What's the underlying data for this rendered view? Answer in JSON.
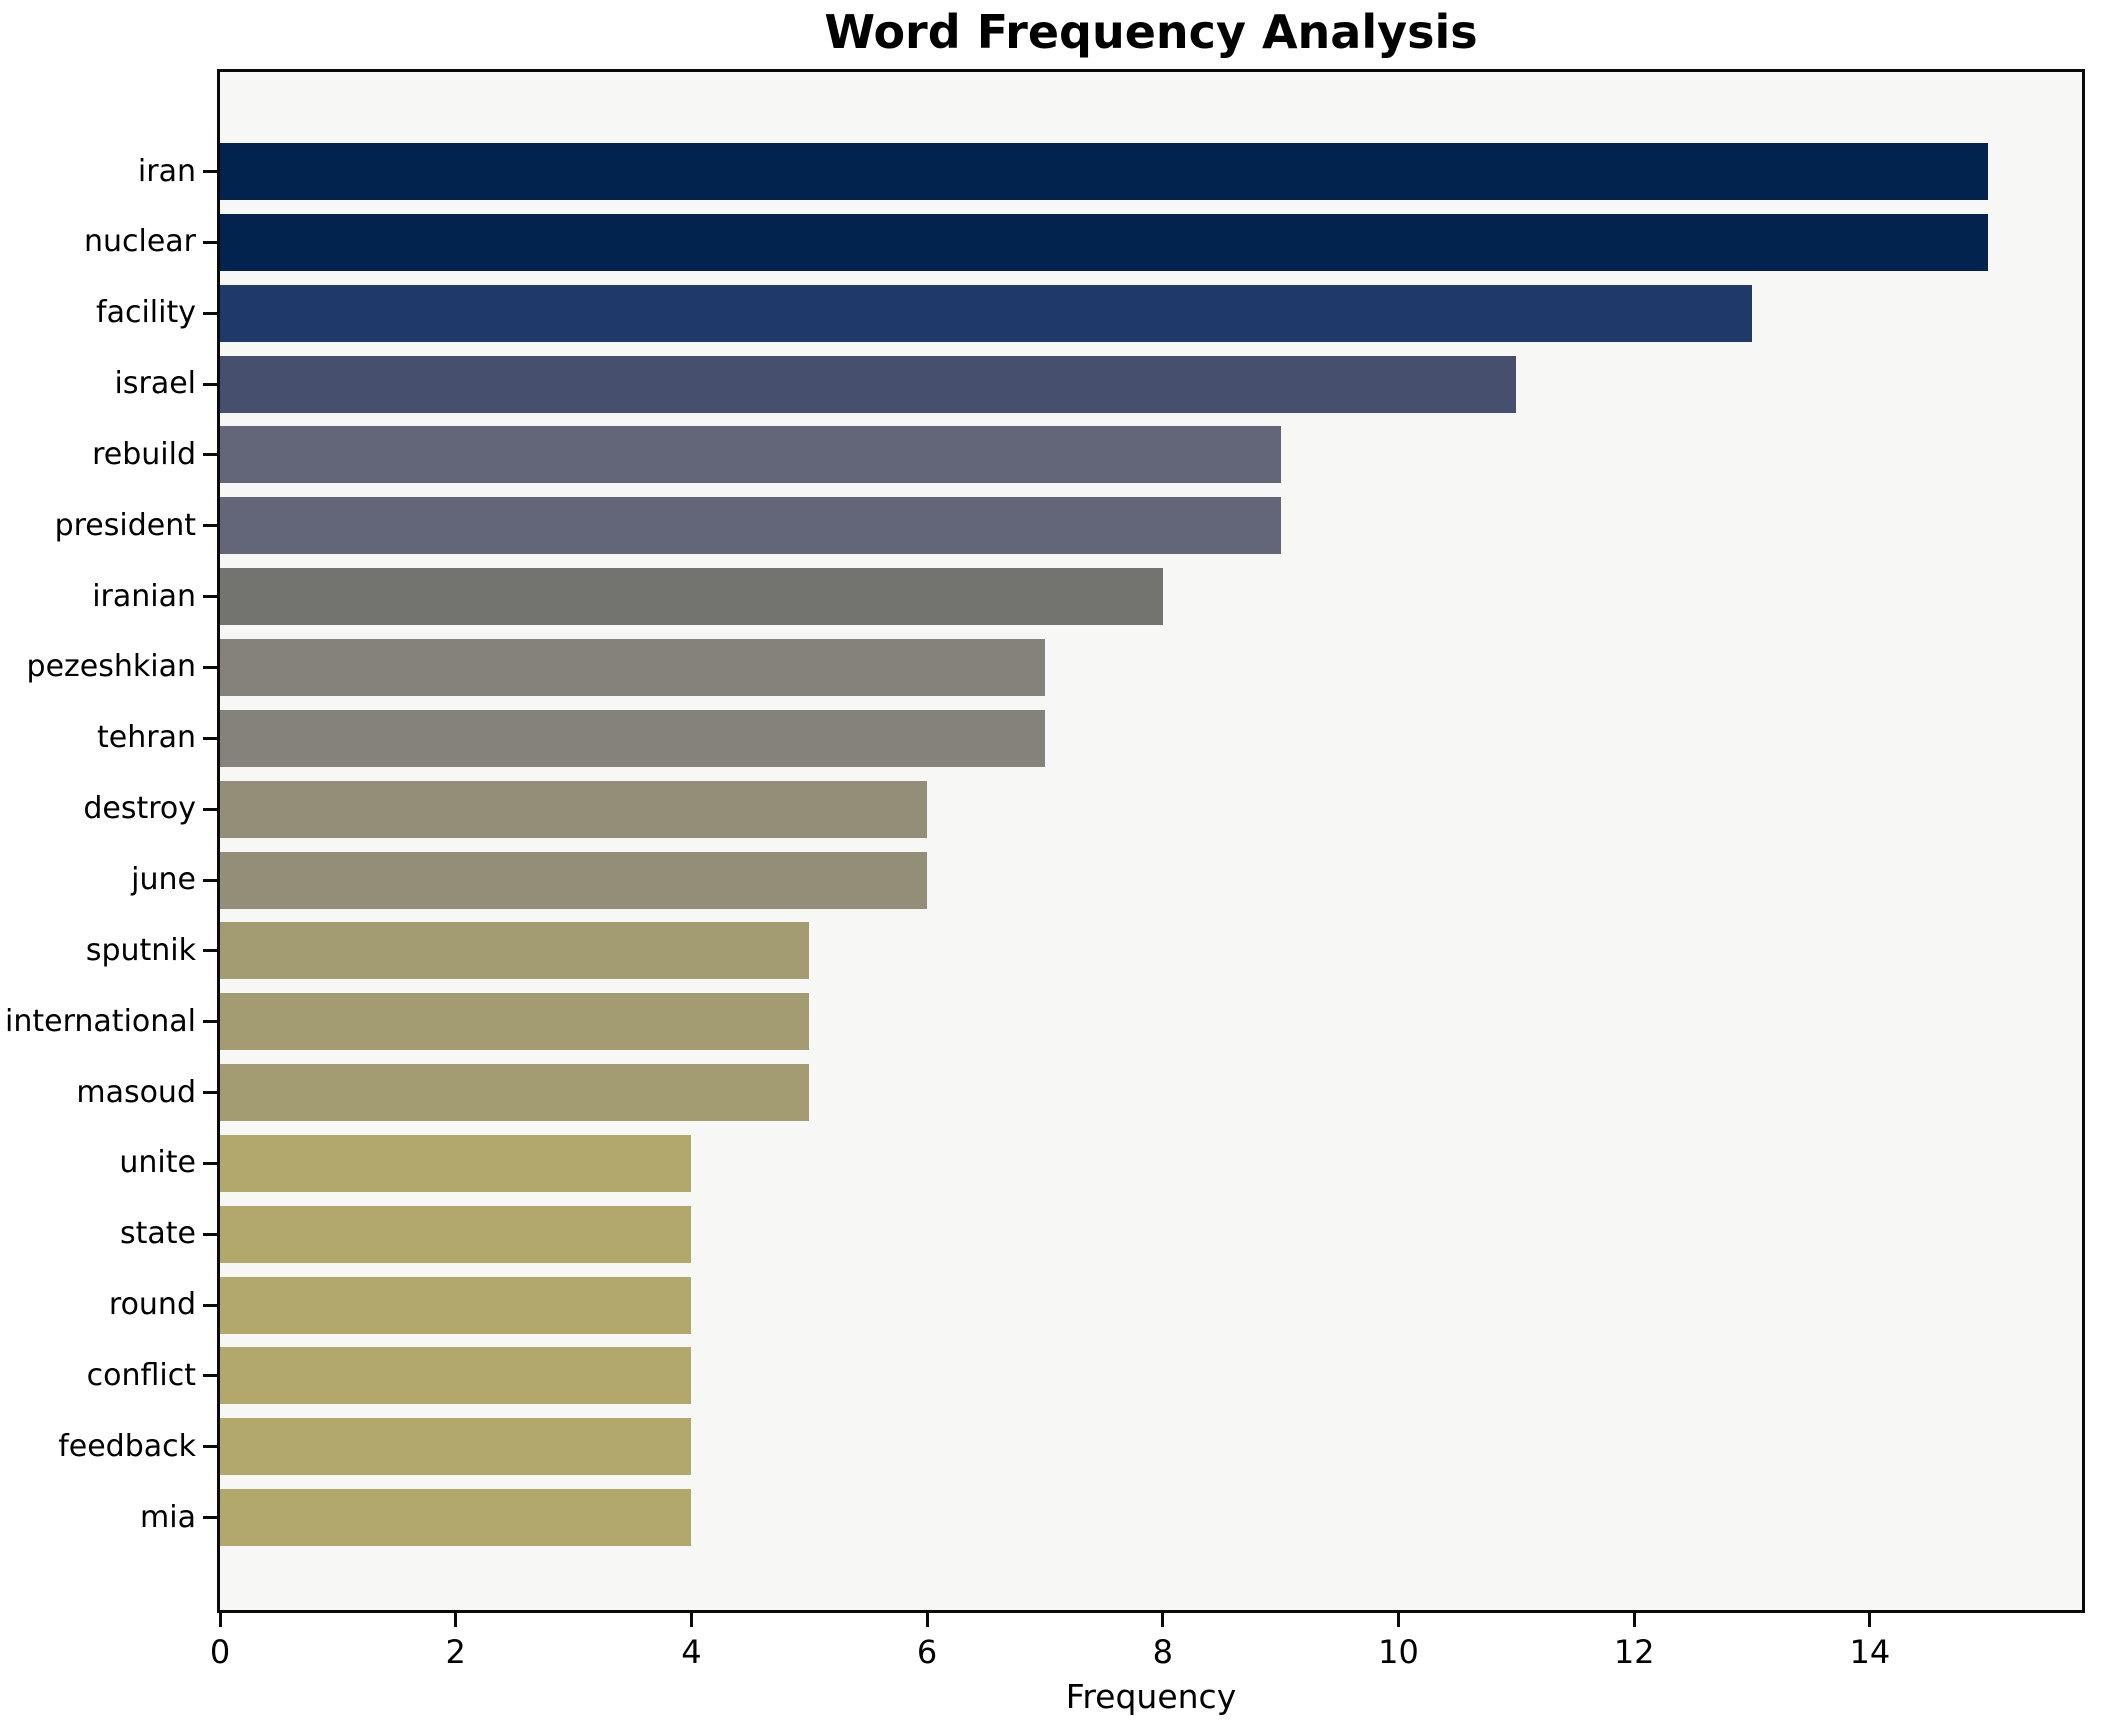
{
  "title": "Word Frequency Analysis",
  "xlabel": "Frequency",
  "chart_data": {
    "type": "bar",
    "orientation": "horizontal",
    "title": "Word Frequency Analysis",
    "xlabel": "Frequency",
    "ylabel": "",
    "categories": [
      "iran",
      "nuclear",
      "facility",
      "israel",
      "rebuild",
      "president",
      "iranian",
      "pezeshkian",
      "tehran",
      "destroy",
      "june",
      "sputnik",
      "international",
      "masoud",
      "unite",
      "state",
      "round",
      "conflict",
      "feedback",
      "mia"
    ],
    "values": [
      15,
      15,
      13,
      11,
      9,
      9,
      8,
      7,
      7,
      6,
      6,
      5,
      5,
      5,
      4,
      4,
      4,
      4,
      4,
      4
    ],
    "bar_colors": [
      "#01234e",
      "#01234e",
      "#20396b",
      "#46506e",
      "#626678",
      "#626678",
      "#737470",
      "#84827a",
      "#84827a",
      "#938e78",
      "#938e78",
      "#a39c73",
      "#a39c73",
      "#a39c73",
      "#b2a86b",
      "#b2a86b",
      "#b2a86b",
      "#b2a86b",
      "#b2a86b",
      "#b2a86b"
    ],
    "xticks": [
      0,
      2,
      4,
      6,
      8,
      10,
      12,
      14
    ],
    "xlim": [
      0,
      15.8
    ],
    "grid": false,
    "legend": null,
    "plot_background": "#f7f7f5",
    "figure_background": "#ffffff",
    "spine_color": "#0a0a0a"
  }
}
